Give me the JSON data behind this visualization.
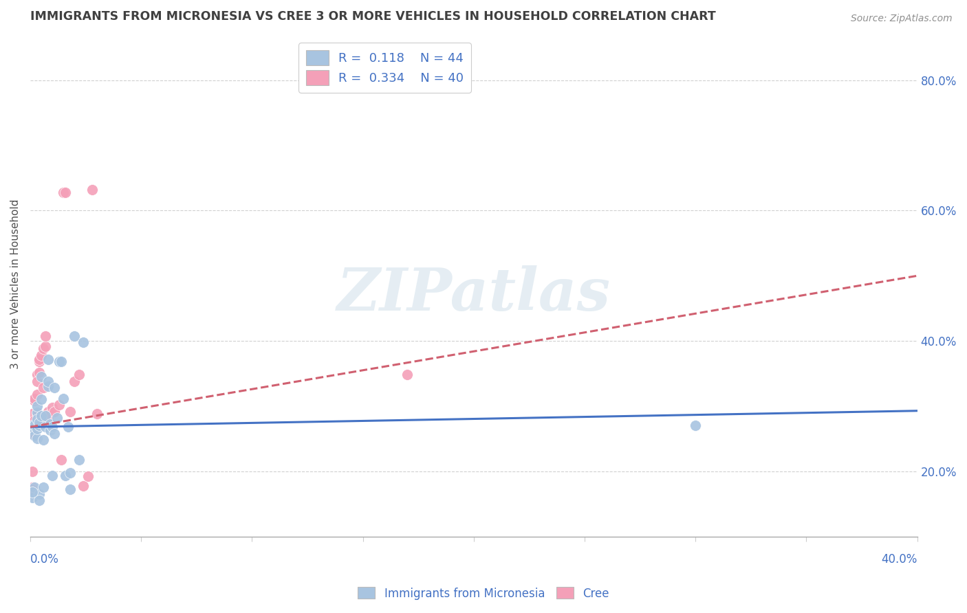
{
  "title": "IMMIGRANTS FROM MICRONESIA VS CREE 3 OR MORE VEHICLES IN HOUSEHOLD CORRELATION CHART",
  "source": "Source: ZipAtlas.com",
  "ylabel": "3 or more Vehicles in Household",
  "right_yticks": [
    "20.0%",
    "40.0%",
    "60.0%",
    "80.0%"
  ],
  "right_ytick_vals": [
    0.2,
    0.4,
    0.6,
    0.8
  ],
  "legend1_R": "0.118",
  "legend1_N": "44",
  "legend2_R": "0.334",
  "legend2_N": "40",
  "blue_color": "#a8c4e0",
  "pink_color": "#f4a0b8",
  "blue_line_color": "#4472c4",
  "pink_line_color": "#d06070",
  "title_color": "#404040",
  "axis_label_color": "#4472c4",
  "watermark": "ZIPatlas",
  "blue_scatter_x": [
    0.001,
    0.001,
    0.001,
    0.002,
    0.002,
    0.002,
    0.003,
    0.003,
    0.003,
    0.003,
    0.003,
    0.004,
    0.004,
    0.004,
    0.004,
    0.005,
    0.005,
    0.005,
    0.006,
    0.006,
    0.007,
    0.007,
    0.008,
    0.008,
    0.008,
    0.009,
    0.009,
    0.01,
    0.01,
    0.011,
    0.011,
    0.012,
    0.013,
    0.014,
    0.015,
    0.016,
    0.017,
    0.018,
    0.018,
    0.02,
    0.022,
    0.024,
    0.3,
    0.001
  ],
  "blue_scatter_y": [
    0.27,
    0.265,
    0.16,
    0.175,
    0.27,
    0.255,
    0.25,
    0.29,
    0.3,
    0.28,
    0.265,
    0.165,
    0.155,
    0.27,
    0.275,
    0.285,
    0.31,
    0.345,
    0.175,
    0.248,
    0.268,
    0.285,
    0.33,
    0.338,
    0.372,
    0.263,
    0.272,
    0.193,
    0.268,
    0.258,
    0.328,
    0.282,
    0.368,
    0.368,
    0.312,
    0.193,
    0.268,
    0.172,
    0.198,
    0.408,
    0.218,
    0.398,
    0.27,
    0.168
  ],
  "pink_scatter_x": [
    0.001,
    0.001,
    0.001,
    0.001,
    0.001,
    0.002,
    0.002,
    0.002,
    0.002,
    0.003,
    0.003,
    0.003,
    0.003,
    0.004,
    0.004,
    0.004,
    0.005,
    0.005,
    0.006,
    0.006,
    0.007,
    0.007,
    0.008,
    0.008,
    0.009,
    0.01,
    0.011,
    0.013,
    0.014,
    0.015,
    0.016,
    0.018,
    0.02,
    0.022,
    0.024,
    0.026,
    0.028,
    0.03,
    0.17,
    0.001
  ],
  "pink_scatter_y": [
    0.175,
    0.2,
    0.258,
    0.278,
    0.288,
    0.27,
    0.278,
    0.308,
    0.312,
    0.348,
    0.288,
    0.318,
    0.338,
    0.352,
    0.368,
    0.372,
    0.282,
    0.378,
    0.328,
    0.388,
    0.392,
    0.408,
    0.278,
    0.292,
    0.288,
    0.298,
    0.292,
    0.302,
    0.218,
    0.628,
    0.628,
    0.292,
    0.338,
    0.348,
    0.178,
    0.192,
    0.632,
    0.288,
    0.348,
    0.172
  ],
  "xlim": [
    0.0,
    0.4
  ],
  "ylim": [
    0.1,
    0.875
  ],
  "blue_trend_y_intercept": 0.268,
  "blue_trend_slope": 0.062,
  "pink_trend_y_intercept": 0.268,
  "pink_trend_slope": 0.58
}
